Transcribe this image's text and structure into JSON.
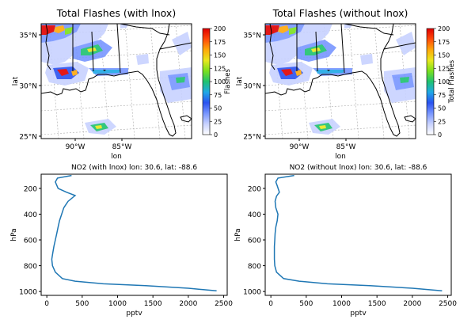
{
  "colormap": [
    "#ffffff",
    "#c8d2ff",
    "#7896ff",
    "#2a52f0",
    "#1fa8e6",
    "#1fc270",
    "#7be01e",
    "#e8e81e",
    "#ffa80a",
    "#ff4a0a",
    "#e00000"
  ],
  "map_shade": "#c9c9c9",
  "line_color": "#1f77b4",
  "chart_data": [
    {
      "type": "heatmap",
      "title": "Total Flashes (with lnox)",
      "xlabel": "lon",
      "ylabel": "lat",
      "colorbar_label": "Flashes",
      "x_ticks": [
        "90°W",
        "85°W"
      ],
      "y_ticks": [
        "35°N",
        "30°N",
        "25°N"
      ],
      "colorbar_ticks": [
        "0",
        "25",
        "50",
        "75",
        "100",
        "125",
        "150",
        "175",
        "200"
      ],
      "value_range": [
        0,
        200
      ]
    },
    {
      "type": "heatmap",
      "title": "Total Flashes (without lnox)",
      "xlabel": "lon",
      "ylabel": "lat",
      "colorbar_label": "Total Flashes",
      "x_ticks": [
        "90°W",
        "85°W"
      ],
      "y_ticks": [
        "35°N",
        "30°N",
        "25°N"
      ],
      "colorbar_ticks": [
        "0",
        "25",
        "50",
        "75",
        "100",
        "125",
        "150",
        "175",
        "200"
      ],
      "value_range": [
        0,
        200
      ]
    },
    {
      "type": "line",
      "title": "NO2 (with lnox) lon: 30.6, lat: -88.6",
      "xlabel": "pptv",
      "ylabel": "hPa",
      "xlim": [
        -80,
        2550
      ],
      "ylim": [
        1030,
        90
      ],
      "x_ticks": [
        0,
        500,
        1000,
        1500,
        2000,
        2500
      ],
      "y_ticks": [
        200,
        400,
        600,
        800,
        1000
      ],
      "series": [
        {
          "x": [
            350,
            150,
            120,
            160,
            280,
            400,
            300,
            240,
            210,
            180,
            160,
            140,
            120,
            100,
            85,
            70,
            80,
            120,
            220,
            400,
            800,
            1400,
            2000,
            2400
          ],
          "y": [
            100,
            120,
            150,
            200,
            230,
            255,
            300,
            350,
            400,
            450,
            500,
            550,
            600,
            650,
            700,
            750,
            800,
            850,
            900,
            920,
            940,
            955,
            975,
            995
          ]
        }
      ]
    },
    {
      "type": "line",
      "title": "NO2 (without lnox) lon: 30.6, lat: -88.6",
      "xlabel": "pptv",
      "ylabel": "hPa",
      "xlim": [
        -80,
        2550
      ],
      "ylim": [
        1030,
        90
      ],
      "x_ticks": [
        0,
        500,
        1000,
        1500,
        2000,
        2500
      ],
      "y_ticks": [
        200,
        400,
        600,
        800,
        1000
      ],
      "series": [
        {
          "x": [
            330,
            100,
            70,
            90,
            120,
            80,
            60,
            70,
            100,
            90,
            70,
            60,
            55,
            50,
            50,
            50,
            55,
            80,
            180,
            400,
            800,
            1400,
            2000,
            2420
          ],
          "y": [
            100,
            120,
            150,
            180,
            230,
            260,
            300,
            350,
            400,
            450,
            500,
            550,
            600,
            650,
            700,
            750,
            800,
            850,
            900,
            920,
            940,
            955,
            975,
            995
          ]
        }
      ]
    }
  ]
}
